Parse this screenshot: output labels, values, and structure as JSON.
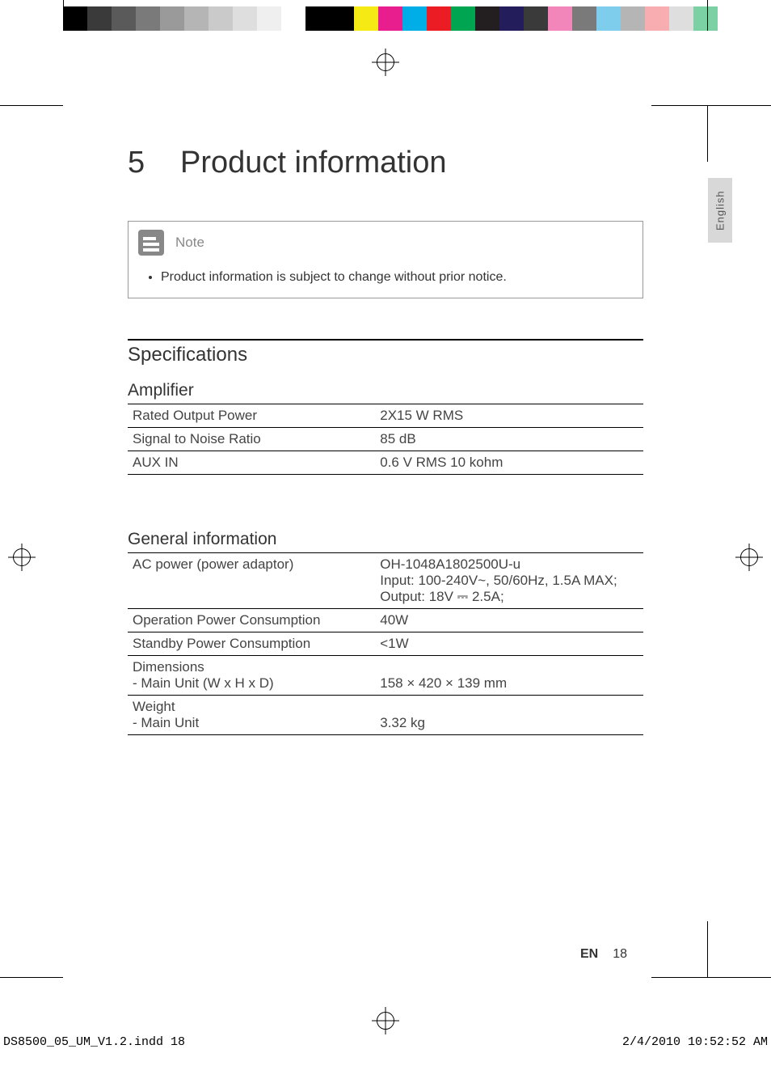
{
  "colorBar": [
    "#000000",
    "#3a3a3a",
    "#5a5a5a",
    "#7a7a7a",
    "#9a9a9a",
    "#b5b5b5",
    "#cacaca",
    "#dedede",
    "#efefef",
    "#ffffff",
    "#000000",
    "#000000",
    "#f5ea14",
    "#e91e8e",
    "#00aee7",
    "#eb1c24",
    "#00a551",
    "#231f20",
    "#241d5c",
    "#3a3a3a",
    "#f285b9",
    "#7a7a7a",
    "#7fcded",
    "#b5b5b5",
    "#f8aeb0",
    "#dedede",
    "#7bd1a3"
  ],
  "chapter": {
    "num": "5",
    "title": "Product information"
  },
  "note": {
    "label": "Note",
    "text": "Product information is subject to change without prior notice."
  },
  "langTab": "English",
  "sectionTitle": "Specifications",
  "amplifier": {
    "title": "Amplifier",
    "rows": [
      {
        "label": "Rated Output Power",
        "value": "2X15 W RMS"
      },
      {
        "label": "Signal to Noise Ratio",
        "value": "85 dB"
      },
      {
        "label": "AUX IN",
        "value": "0.6 V RMS 10 kohm"
      }
    ]
  },
  "general": {
    "title": "General information",
    "rows": [
      {
        "label": "AC power (power adaptor)",
        "value": "OH-1048A1802500U-u\nInput: 100-240V~, 50/60Hz, 1.5A MAX;\nOutput: 18V ⎓ 2.5A;"
      },
      {
        "label": "Operation Power Consumption",
        "value": "40W"
      },
      {
        "label": "Standby Power Consumption",
        "value": "<1W"
      },
      {
        "label": "Dimensions\n- Main Unit (W x H x D)",
        "value": "\n158 × 420 × 139 mm"
      },
      {
        "label": "Weight\n - Main Unit",
        "value": "\n3.32 kg"
      }
    ]
  },
  "footer": {
    "lang": "EN",
    "pageNum": "18"
  },
  "meta": {
    "filename": "DS8500_05_UM_V1.2.indd   18",
    "datetime": "2/4/2010   10:52:52 AM"
  }
}
